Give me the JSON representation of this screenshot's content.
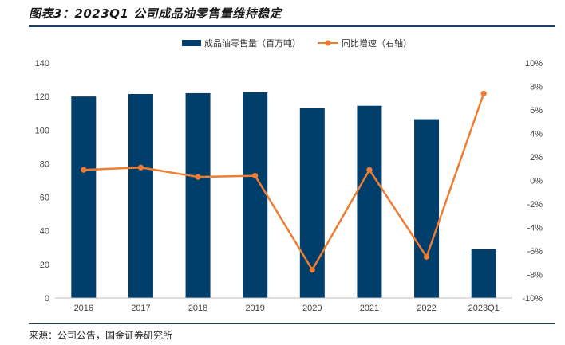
{
  "header": {
    "title": "图表3：2023Q1 公司成品油零售量维持稳定"
  },
  "footer": {
    "source": "来源：公司公告，国金证券研究所"
  },
  "colors": {
    "bar": "#003f6b",
    "line": "#ee7d31",
    "rule": "#1c3f66"
  },
  "chart_data": {
    "type": "bar",
    "categories": [
      "2016",
      "2017",
      "2018",
      "2019",
      "2020",
      "2021",
      "2022",
      "2023Q1"
    ],
    "series": [
      {
        "name": "成品油零售量（百万吨）",
        "type": "bar",
        "axis": "left",
        "values": [
          120.0,
          121.5,
          122.0,
          122.5,
          113.0,
          114.5,
          106.5,
          29.0
        ]
      },
      {
        "name": "同比增速（右轴）",
        "type": "line",
        "axis": "right",
        "values": [
          0.9,
          1.1,
          0.3,
          0.4,
          -7.6,
          0.9,
          -6.5,
          7.4
        ]
      }
    ],
    "left_axis": {
      "ylim": [
        0,
        140
      ],
      "ticks": [
        "0",
        "20",
        "40",
        "60",
        "80",
        "100",
        "120",
        "140"
      ]
    },
    "right_axis": {
      "ylim": [
        -10,
        10
      ],
      "ticks": [
        "-10%",
        "-8%",
        "-6%",
        "-4%",
        "-2%",
        "0%",
        "2%",
        "4%",
        "6%",
        "8%",
        "10%"
      ]
    },
    "legend_position": "top-center",
    "grid": false
  }
}
